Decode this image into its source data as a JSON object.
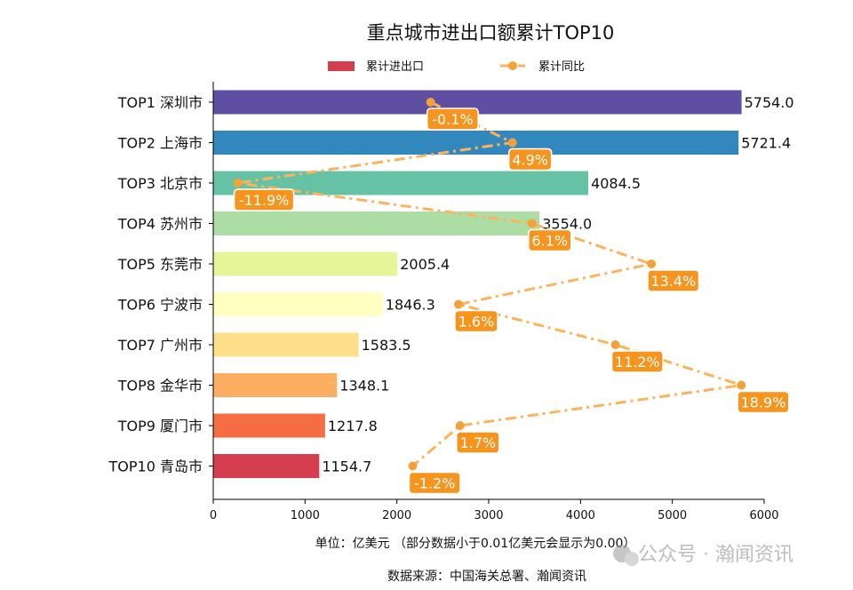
{
  "chart_data": {
    "type": "bar",
    "orientation": "horizontal",
    "title": "重点城市进出口额累计TOP10",
    "categories": [
      "TOP1 深圳市",
      "TOP2 上海市",
      "TOP3 北京市",
      "TOP4 苏州市",
      "TOP5 东莞市",
      "TOP6 宁波市",
      "TOP7 广州市",
      "TOP8 金华市",
      "TOP9 厦门市",
      "TOP10 青岛市"
    ],
    "series": [
      {
        "name": "累计进出口",
        "type": "bar",
        "values": [
          5754.0,
          5721.4,
          4084.5,
          3554.0,
          2005.4,
          1846.3,
          1583.5,
          1348.1,
          1217.8,
          1154.7
        ],
        "labels": [
          "5754.0",
          "5721.4",
          "4084.5",
          "3554.0",
          "2005.4",
          "1846.3",
          "1583.5",
          "1348.1",
          "1217.8",
          "1154.7"
        ],
        "colors": [
          "#5e4fa2",
          "#3288bd",
          "#66c2a5",
          "#abdda4",
          "#e6f598",
          "#ffffbf",
          "#fee08b",
          "#fdae61",
          "#f46d43",
          "#d53e4f"
        ]
      },
      {
        "name": "累计同比",
        "type": "line",
        "line_style": "dash-dot",
        "color": "#fdb35c",
        "marker_color": "#f5a13a",
        "values": [
          -0.1,
          4.9,
          -11.9,
          6.1,
          13.4,
          1.6,
          11.2,
          18.9,
          1.7,
          -1.2
        ],
        "labels": [
          "-0.1%",
          "4.9%",
          "-11.9%",
          "6.1%",
          "13.4%",
          "1.6%",
          "11.2%",
          "18.9%",
          "1.7%",
          "-1.2%"
        ],
        "label_bg": "#f7941d",
        "secondary_axis_hidden": true,
        "secondary_xlim": [
          -13.4,
          20.3
        ]
      }
    ],
    "xlim": [
      0,
      6000
    ],
    "xticks": [
      "0",
      "1000",
      "2000",
      "3000",
      "4000",
      "5000",
      "6000"
    ],
    "xlabel": "单位：亿美元  （部分数据小于0.01亿美元会显示为0.00）",
    "source": "数据来源：中国海关总署、瀚闻资讯",
    "legend": "top-center",
    "grid": false
  },
  "watermark": "公众号 · 瀚闻资讯"
}
